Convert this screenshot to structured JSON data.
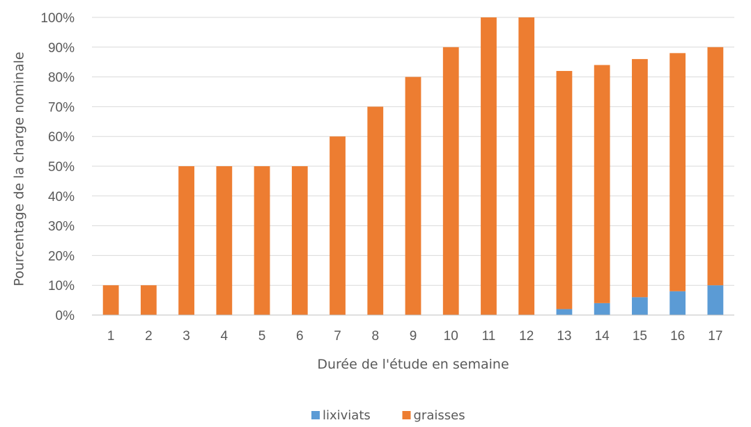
{
  "chart_data": {
    "type": "bar",
    "stacked": true,
    "title": "",
    "xlabel": "Durée de l'étude en semaine",
    "ylabel": "Pourcentage de la charge nominale",
    "categories": [
      "1",
      "2",
      "3",
      "4",
      "5",
      "6",
      "7",
      "8",
      "9",
      "10",
      "11",
      "12",
      "13",
      "14",
      "15",
      "16",
      "17"
    ],
    "series": [
      {
        "name": "lixiviats",
        "color": "#5b9bd5",
        "values": [
          0,
          0,
          0,
          0,
          0,
          0,
          0,
          0,
          0,
          0,
          0,
          0,
          2,
          4,
          6,
          8,
          10
        ]
      },
      {
        "name": "graisses",
        "color": "#ed7d31",
        "values": [
          10,
          10,
          50,
          50,
          50,
          50,
          60,
          70,
          80,
          90,
          100,
          100,
          80,
          80,
          80,
          80,
          80
        ]
      }
    ],
    "ylim": [
      0,
      100
    ],
    "yticks": [
      "0%",
      "10%",
      "20%",
      "30%",
      "40%",
      "50%",
      "60%",
      "70%",
      "80%",
      "90%",
      "100%"
    ],
    "grid": true,
    "legend_position": "bottom"
  }
}
